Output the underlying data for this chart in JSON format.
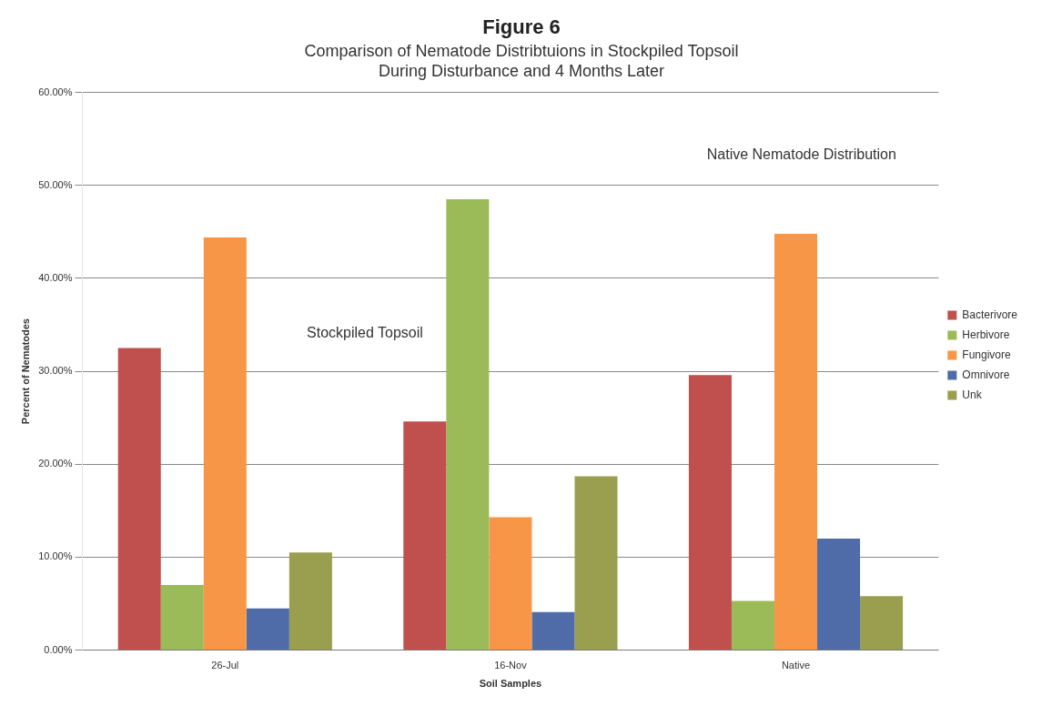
{
  "chart_data": {
    "type": "bar",
    "title": "Figure 6",
    "subtitle": "Comparison of Nematode Distribtuions in Stockpiled Topsoil\nDuring Disturbance and 4 Months Later",
    "xlabel": "Soil Samples",
    "ylabel": "Percent of Nematodes",
    "categories": [
      "26-Jul",
      "16-Nov",
      "Native"
    ],
    "series": [
      {
        "name": "Bacterivore",
        "color": "#c0504d",
        "values": [
          32.5,
          24.6,
          29.6
        ]
      },
      {
        "name": "Herbivore",
        "color": "#9bbb59",
        "values": [
          7.0,
          48.5,
          5.3
        ]
      },
      {
        "name": "Fungivore",
        "color": "#f79646",
        "values": [
          44.4,
          14.3,
          44.8
        ]
      },
      {
        "name": "Omnivore",
        "color": "#4f6ba8",
        "values": [
          4.5,
          4.1,
          12.0
        ]
      },
      {
        "name": "Unk",
        "color": "#9a9f4f",
        "values": [
          10.5,
          18.7,
          5.8
        ]
      }
    ],
    "ylim": [
      0,
      60
    ],
    "yticks": [
      {
        "value": 0,
        "label": "0.00%"
      },
      {
        "value": 10,
        "label": "10.00%"
      },
      {
        "value": 20,
        "label": "20.00%"
      },
      {
        "value": 30,
        "label": "30.00%"
      },
      {
        "value": 40,
        "label": "40.00%"
      },
      {
        "value": 50,
        "label": "50.00%"
      },
      {
        "value": 60,
        "label": "60.00%"
      }
    ],
    "grid": "y",
    "legend": "right",
    "annotations": [
      "Stockpiled Topsoil",
      "Native Nematode Distribution"
    ]
  }
}
